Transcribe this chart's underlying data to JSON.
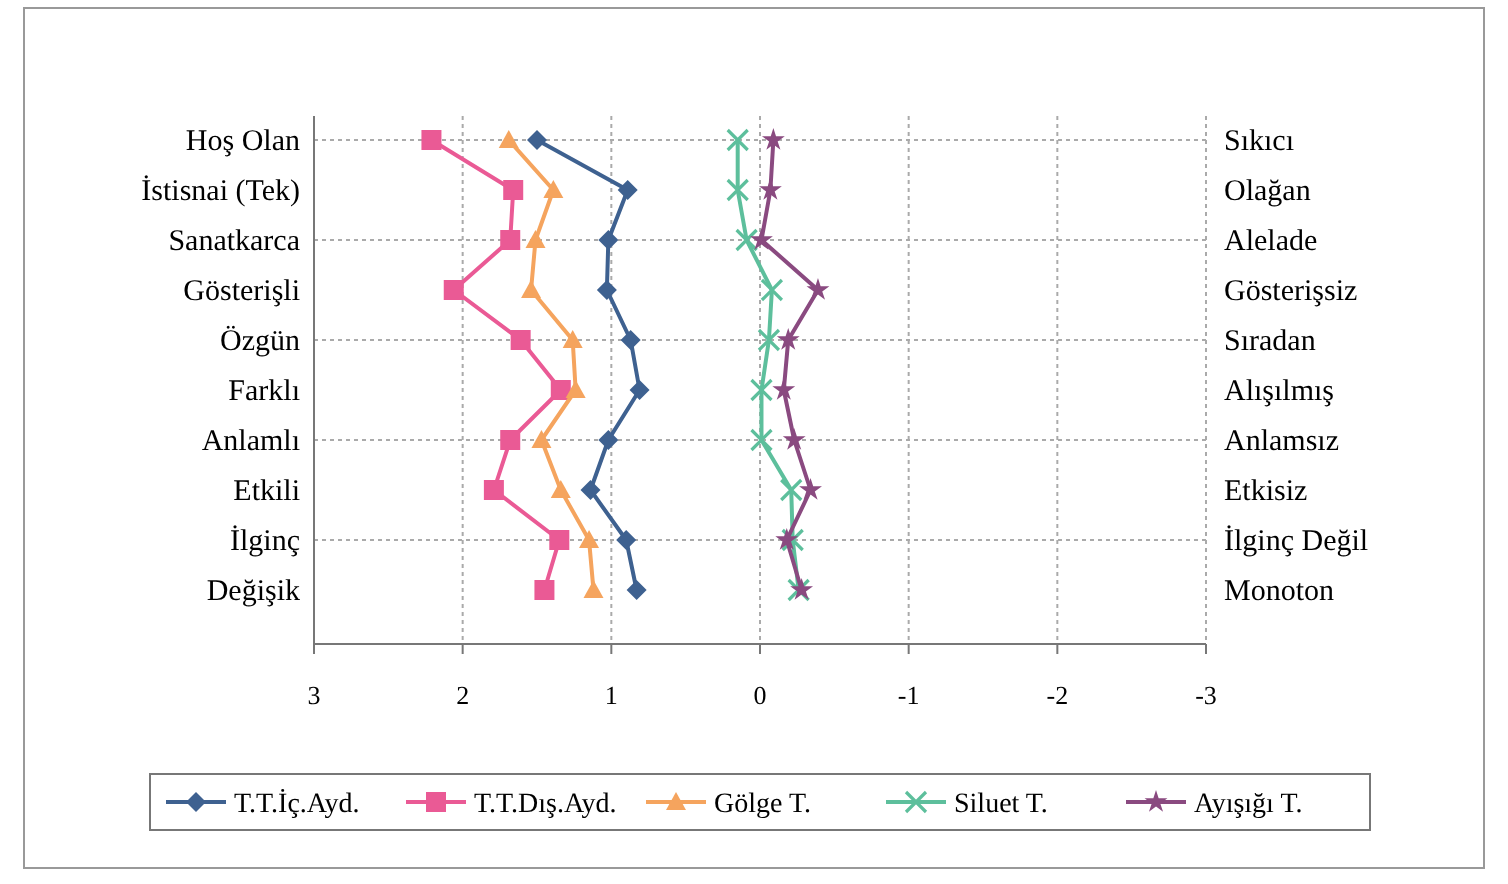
{
  "chart_data": {
    "type": "line",
    "orientation": "horizontal",
    "categories": [
      "Hoş Olan",
      "İstisnai (Tek)",
      "Sanatkarca",
      "Gösterişli",
      "Özgün",
      "Farklı",
      "Anlamlı",
      "Etkili",
      "İlginç",
      "Değişik"
    ],
    "y2_categories": [
      "Sıkıcı",
      "Olağan",
      "Alelade",
      "Gösterişsiz",
      "Sıradan",
      "Alışılmış",
      "Anlamsız",
      "Etkisiz",
      "İlginç Değil",
      "Monoton"
    ],
    "xlim": [
      3,
      -3
    ],
    "xticks": [
      3,
      2,
      1,
      0,
      -1,
      -2,
      -3
    ],
    "grid": true,
    "legend": "bottom",
    "line_style": "solid",
    "series": [
      {
        "name": "T.T.İç.Ayd.",
        "color": "#3e6190",
        "marker": "diamond",
        "values": [
          1.5,
          0.89,
          1.02,
          1.03,
          0.87,
          0.81,
          1.02,
          1.14,
          0.9,
          0.83
        ]
      },
      {
        "name": "T.T.Dış.Ayd.",
        "color": "#ea5a95",
        "marker": "square",
        "values": [
          2.21,
          1.66,
          1.68,
          2.06,
          1.61,
          1.34,
          1.68,
          1.79,
          1.35,
          1.45
        ]
      },
      {
        "name": "Gölge T.",
        "color": "#f5a45e",
        "marker": "triangle",
        "values": [
          1.69,
          1.39,
          1.51,
          1.54,
          1.26,
          1.24,
          1.47,
          1.34,
          1.15,
          1.12
        ]
      },
      {
        "name": "Siluet T.",
        "color": "#5dbf9c",
        "marker": "cross",
        "values": [
          0.15,
          0.15,
          0.09,
          -0.08,
          -0.06,
          -0.01,
          -0.01,
          -0.21,
          -0.22,
          -0.26
        ]
      },
      {
        "name": "Ayışığı T.",
        "color": "#8a4a80",
        "marker": "star",
        "values": [
          -0.09,
          -0.07,
          -0.01,
          -0.39,
          -0.19,
          -0.16,
          -0.23,
          -0.34,
          -0.18,
          -0.28
        ]
      }
    ]
  }
}
